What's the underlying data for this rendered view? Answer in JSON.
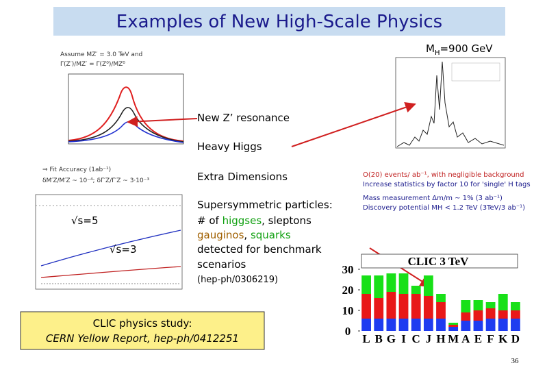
{
  "title": "Examples of New High-Scale Physics",
  "higgs_mass": {
    "symbol": "M",
    "subscript": "H",
    "value": "=900 GeV"
  },
  "labels": {
    "z_prime": "New Z’ resonance",
    "heavy_higgs": "Heavy Higgs",
    "extra_dim": "Extra Dimensions"
  },
  "zprime_plot": {
    "assume": "Assume MZ′ = 3.0 TeV and",
    "width": "Γ(Z′)/MZ′ = Γ(Z⁰)/MZ⁰",
    "fit": "⇒ Fit Accuracy (1ab⁻¹)",
    "precision": "δM′Z/M′Z ~ 10⁻⁴; δΓ′Z/Γ′Z ~ 3·10⁻³"
  },
  "extra_dim_plot": {
    "s5": "√s=5",
    "s3": "√s=3"
  },
  "higgs_notes": [
    "O(20) events/ ab⁻¹, with negligible background",
    "Increase statistics by factor 10 for 'single' H tags",
    "Mass measurement Δm/m ~ 1% (3 ab⁻¹)",
    "Discovery potential MH < 1.2 TeV (3TeV/3 ab⁻¹)"
  ],
  "susy": {
    "line1": "Supersymmetric particles:",
    "line2": [
      "# of ",
      "higgses",
      ", sleptons"
    ],
    "line3": [
      "gauginos",
      ", ",
      "squarks"
    ],
    "line4": "detected for benchmark",
    "line5": "scenarios",
    "ref": "(hep-ph/0306219)"
  },
  "footer_box": [
    "CLIC physics study:",
    "CERN Yellow Report, hep-ph/0412251"
  ],
  "page_number": "36",
  "clic_chart": {
    "type": "bar",
    "title": "CLIC 3 TeV",
    "categories": [
      "L",
      "B",
      "G",
      "I",
      "C",
      "J",
      "H",
      "M",
      "A",
      "E",
      "F",
      "K",
      "D"
    ],
    "series": [
      {
        "color": "#1f3cf0",
        "values": [
          6,
          6,
          6,
          6,
          6,
          6,
          6,
          2,
          5,
          5,
          6,
          6,
          6
        ]
      },
      {
        "color": "#e81818",
        "values": [
          12,
          10,
          13,
          12,
          12,
          11,
          8,
          1,
          4,
          5,
          5,
          4,
          4
        ]
      },
      {
        "color": "#18e018",
        "values": [
          9,
          11,
          9,
          10,
          4,
          10,
          4,
          1,
          6,
          5,
          3,
          8,
          4
        ]
      }
    ],
    "ylim": [
      0,
      32
    ],
    "yticks": [
      0,
      10,
      20,
      30
    ]
  }
}
